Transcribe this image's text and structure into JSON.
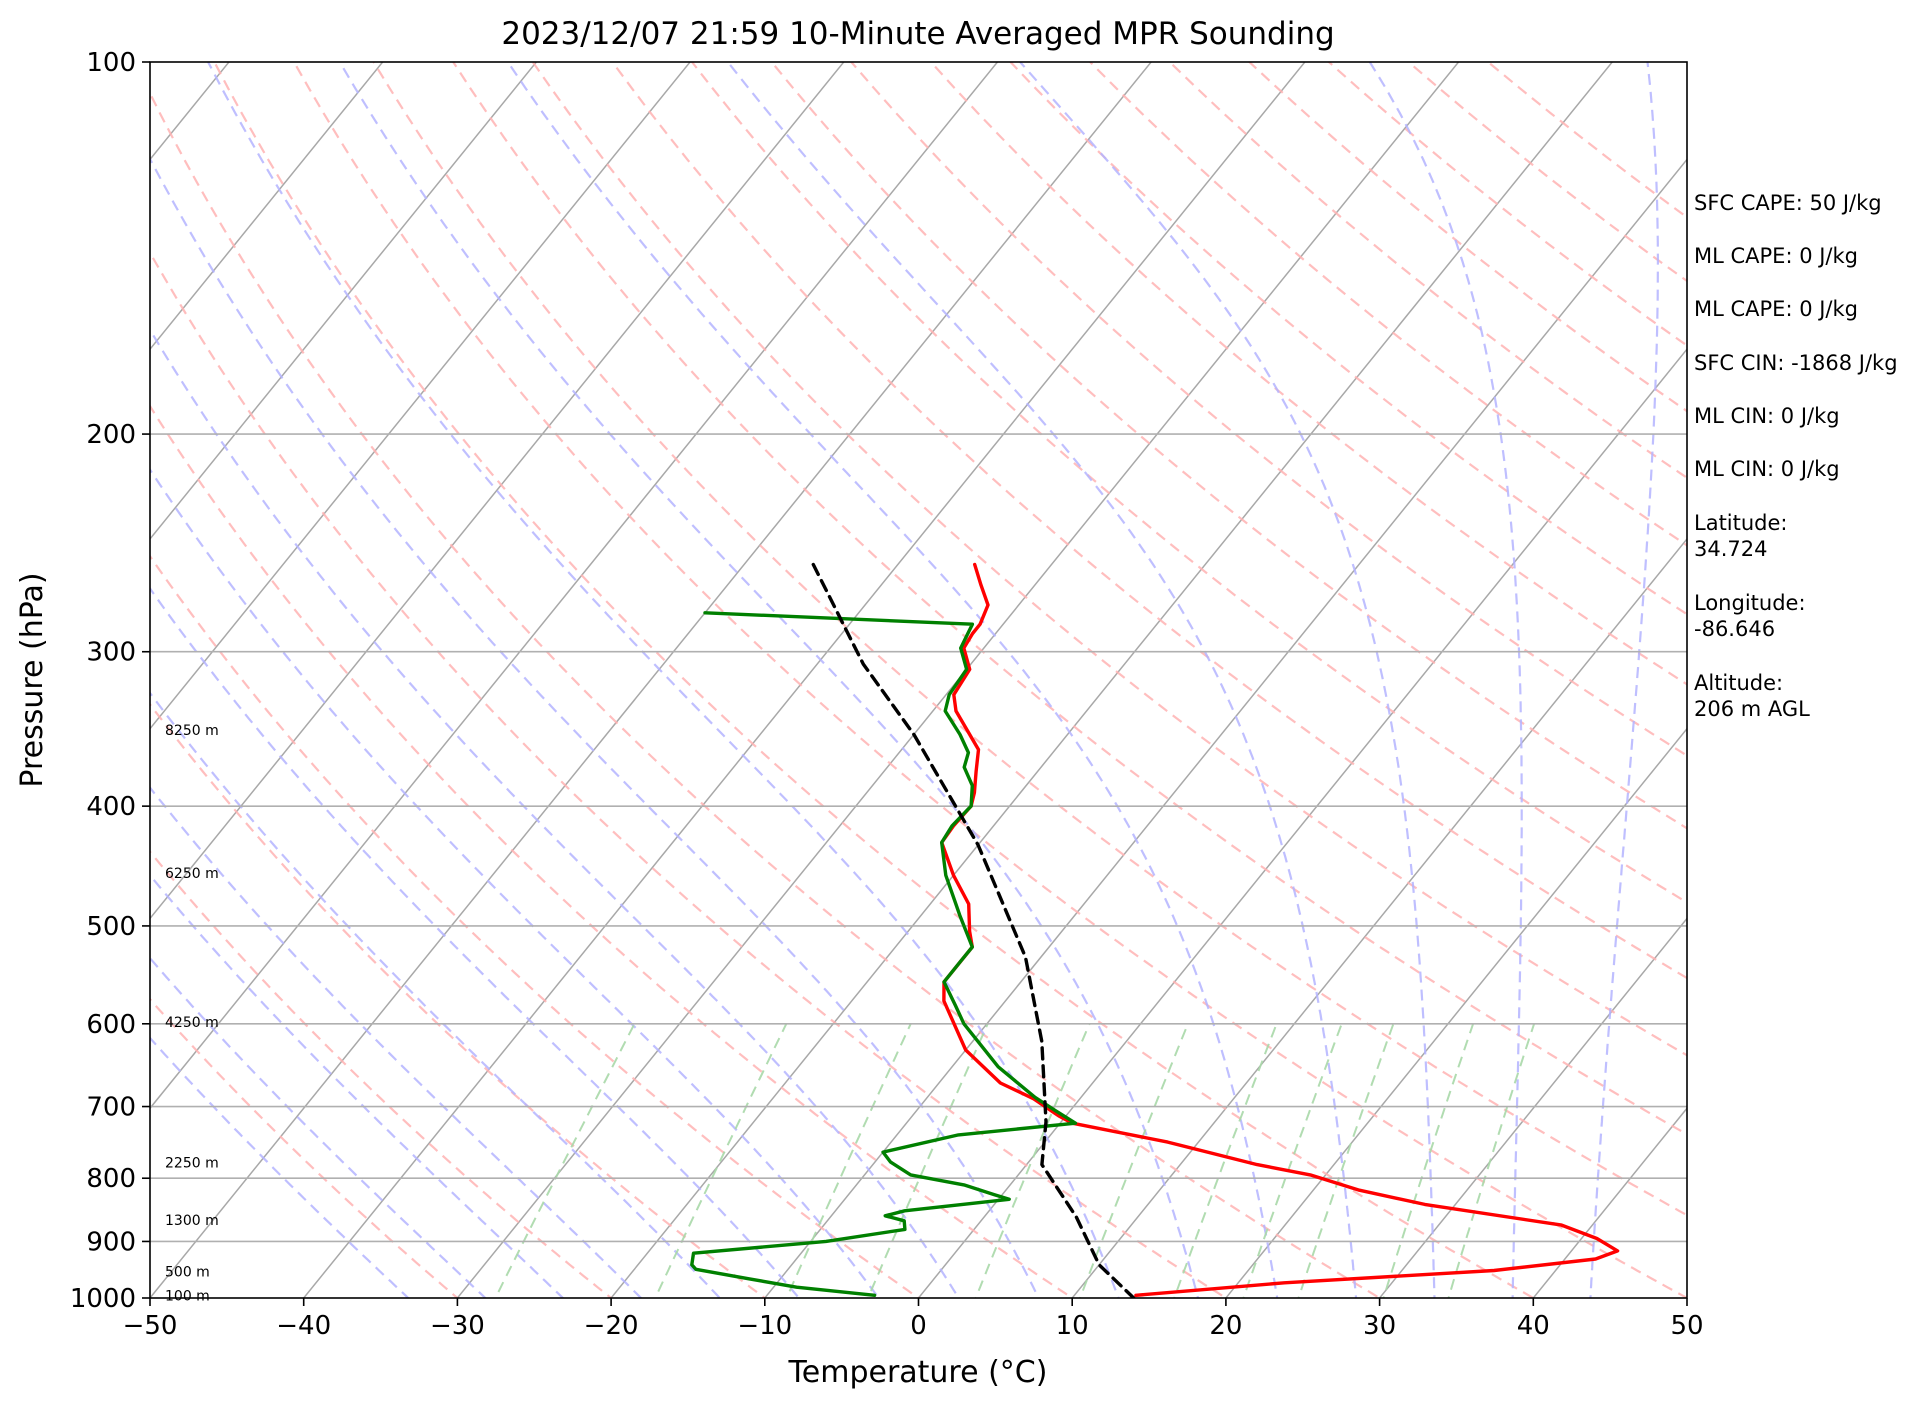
{
  "chart_data": {
    "type": "line",
    "subtype": "skew-T log-P sounding",
    "title": "2023/12/07 21:59 10-Minute Averaged MPR Sounding",
    "xlabel": "Temperature (°C)",
    "ylabel": "Pressure (hPa)",
    "xlim": [
      -50,
      50
    ],
    "ylim": [
      1000,
      100
    ],
    "y_scale": "log",
    "x_ticks": [
      "−50",
      "−40",
      "−30",
      "−20",
      "−10",
      "0",
      "10",
      "20",
      "30",
      "40",
      "50"
    ],
    "y_ticks": [
      "100",
      "200",
      "300",
      "400",
      "500",
      "600",
      "700",
      "800",
      "900",
      "1000"
    ],
    "grid": "horizontal at labeled pressures",
    "height_labels": [
      {
        "text": "100 m",
        "p": 995
      },
      {
        "text": "500 m",
        "p": 952
      },
      {
        "text": "1300 m",
        "p": 865
      },
      {
        "text": "2250 m",
        "p": 777
      },
      {
        "text": "4250 m",
        "p": 598
      },
      {
        "text": "6250 m",
        "p": 453
      },
      {
        "text": "8250 m",
        "p": 347
      }
    ],
    "series": [
      {
        "role": "temperature",
        "color": "#ff0000",
        "points": [
          [
            -35,
            255
          ],
          [
            -33.5,
            265
          ],
          [
            -32,
            275
          ],
          [
            -31.5,
            285
          ],
          [
            -31.5,
            290
          ],
          [
            -31.3,
            298
          ],
          [
            -29.8,
            310
          ],
          [
            -29.5,
            325
          ],
          [
            -28.5,
            335
          ],
          [
            -25,
            360
          ],
          [
            -24,
            375
          ],
          [
            -23,
            390
          ],
          [
            -22.5,
            400
          ],
          [
            -22.6,
            415
          ],
          [
            -22.5,
            428
          ],
          [
            -20,
            455
          ],
          [
            -17.5,
            480
          ],
          [
            -16,
            505
          ],
          [
            -15,
            520
          ],
          [
            -15,
            555
          ],
          [
            -14,
            575
          ],
          [
            -10,
            630
          ],
          [
            -6,
            670
          ],
          [
            -3,
            690
          ],
          [
            -0.5,
            712
          ],
          [
            0.8,
            722
          ],
          [
            8,
            748
          ],
          [
            15,
            780
          ],
          [
            19,
            795
          ],
          [
            23,
            818
          ],
          [
            28,
            840
          ],
          [
            38,
            873
          ],
          [
            41,
            895
          ],
          [
            43,
            916
          ],
          [
            42,
            930
          ],
          [
            36,
            950
          ],
          [
            23,
            972
          ],
          [
            14,
            995
          ]
        ]
      },
      {
        "role": "dewpoint",
        "color": "#008000",
        "points": [
          [
            -50,
            279
          ],
          [
            -32,
            285
          ],
          [
            -31.5,
            298
          ],
          [
            -30,
            310
          ],
          [
            -29.8,
            325
          ],
          [
            -29.2,
            335
          ],
          [
            -27,
            350
          ],
          [
            -25.5,
            362
          ],
          [
            -25,
            372
          ],
          [
            -23.5,
            385
          ],
          [
            -22.5,
            400
          ],
          [
            -22.7,
            415
          ],
          [
            -22.5,
            428
          ],
          [
            -20.5,
            455
          ],
          [
            -18.5,
            478
          ],
          [
            -17.5,
            490
          ],
          [
            -15,
            520
          ],
          [
            -15,
            535
          ],
          [
            -15,
            555
          ],
          [
            -13,
            580
          ],
          [
            -11.5,
            600
          ],
          [
            -7,
            650
          ],
          [
            -3,
            688
          ],
          [
            -1,
            705
          ],
          [
            1,
            722
          ],
          [
            -6,
            738
          ],
          [
            -10,
            762
          ],
          [
            -9,
            776
          ],
          [
            -7,
            795
          ],
          [
            -3,
            810
          ],
          [
            -0.5,
            825
          ],
          [
            0.7,
            832
          ],
          [
            -5.5,
            850
          ],
          [
            -6.5,
            858
          ],
          [
            -5,
            866
          ],
          [
            -4.5,
            880
          ],
          [
            -9,
            900
          ],
          [
            -17,
            920
          ],
          [
            -16.5,
            940
          ],
          [
            -16,
            948
          ],
          [
            -12,
            965
          ],
          [
            -8.5,
            980
          ],
          [
            -3,
            995
          ]
        ]
      },
      {
        "role": "parcel-path",
        "color": "#000000",
        "points": [
          [
            -45.5,
            255
          ],
          [
            -37,
            307
          ],
          [
            -30,
            350
          ],
          [
            -20,
            430
          ],
          [
            -11,
            530
          ],
          [
            -5.5,
            620
          ],
          [
            -1,
            720
          ],
          [
            1,
            780
          ],
          [
            6,
            860
          ],
          [
            10,
            940
          ],
          [
            14,
            1000
          ]
        ]
      }
    ],
    "background_lines": {
      "dry_adiabats": "light red dashed",
      "moist_adiabats": "light blue dashed",
      "mixing_ratio": "light green dashed",
      "isotherms": "gray solid"
    }
  },
  "side_panel": [
    {
      "label": "SFC CAPE: 50 J/kg"
    },
    {
      "label": "ML CAPE: 0 J/kg"
    },
    {
      "label": "ML CAPE: 0 J/kg"
    },
    {
      "label": "SFC CIN: -1868 J/kg"
    },
    {
      "label": "ML CIN: 0 J/kg"
    },
    {
      "label": "ML CIN: 0 J/kg"
    },
    {
      "label": "Latitude:",
      "value": "34.724"
    },
    {
      "label": "Longitude:",
      "value": "-86.646"
    },
    {
      "label": "Altitude:",
      "value": "206 m AGL"
    }
  ]
}
